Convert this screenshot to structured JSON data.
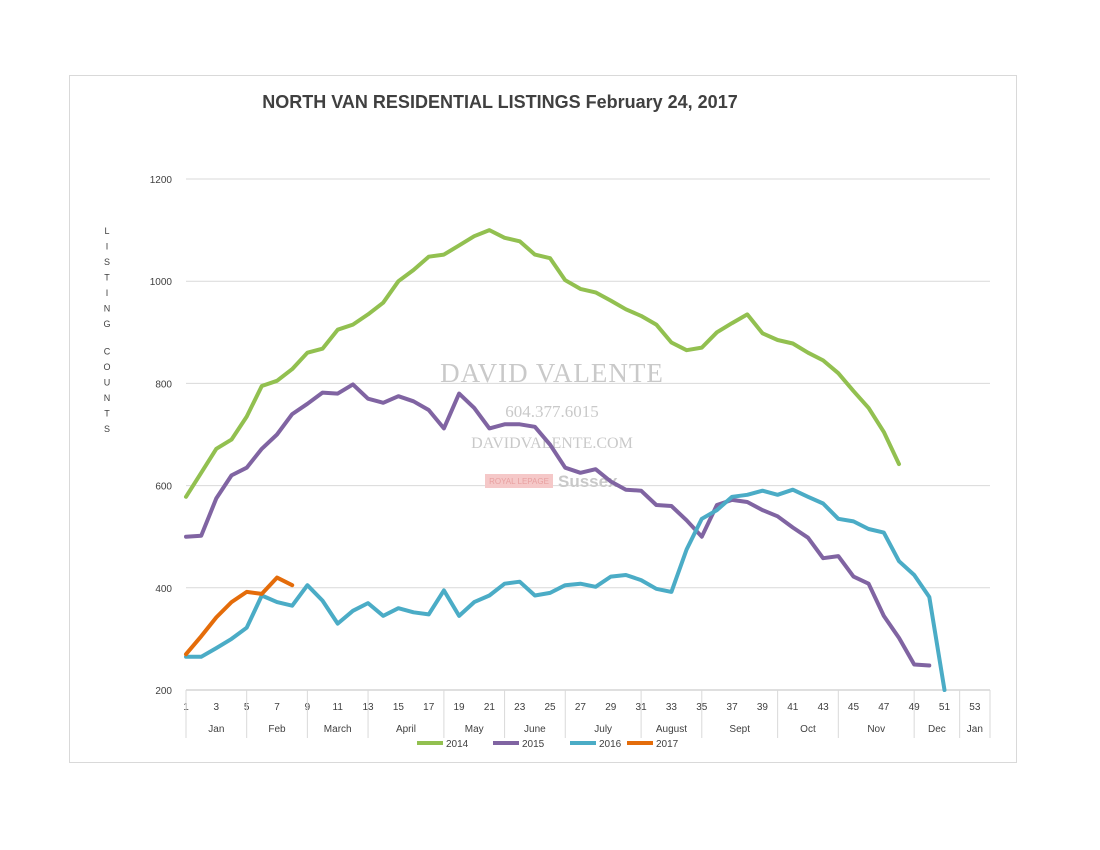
{
  "chart_data": {
    "type": "line",
    "title": "NORTH VAN RESIDENTIAL LISTINGS February 24, 2017",
    "ylabel": "LISTING COUNTS",
    "xlabel": "",
    "ylim": [
      200,
      1200
    ],
    "yticks": [
      200,
      400,
      600,
      800,
      1000,
      1200
    ],
    "xlim": [
      1,
      53
    ],
    "xticks": [
      1,
      3,
      5,
      7,
      9,
      11,
      13,
      15,
      17,
      19,
      21,
      23,
      25,
      27,
      29,
      31,
      33,
      35,
      37,
      39,
      41,
      43,
      45,
      47,
      49,
      51,
      53
    ],
    "months": [
      {
        "label": "Jan",
        "from": 1,
        "to": 5
      },
      {
        "label": "Feb",
        "from": 5,
        "to": 9
      },
      {
        "label": "March",
        "from": 9,
        "to": 13
      },
      {
        "label": "April",
        "from": 13,
        "to": 18
      },
      {
        "label": "May",
        "from": 18,
        "to": 22
      },
      {
        "label": "June",
        "from": 22,
        "to": 26
      },
      {
        "label": "July",
        "from": 26,
        "to": 31
      },
      {
        "label": "August",
        "from": 31,
        "to": 35
      },
      {
        "label": "Sept",
        "from": 35,
        "to": 40
      },
      {
        "label": "Oct",
        "from": 40,
        "to": 44
      },
      {
        "label": "Nov",
        "from": 44,
        "to": 49
      },
      {
        "label": "Dec",
        "from": 49,
        "to": 52
      },
      {
        "label": "Jan",
        "from": 52,
        "to": 54
      }
    ],
    "grid": true,
    "legend": "bottom",
    "series": [
      {
        "name": "2014",
        "color": "#92c050",
        "x": [
          1,
          2,
          3,
          4,
          5,
          6,
          7,
          8,
          9,
          10,
          11,
          12,
          13,
          14,
          15,
          16,
          17,
          18,
          19,
          20,
          21,
          22,
          23,
          24,
          25,
          26,
          27,
          28,
          29,
          30,
          31,
          32,
          33,
          34,
          35,
          36,
          37,
          38,
          39,
          40,
          41,
          42,
          43,
          44,
          45,
          46,
          47,
          48
        ],
        "values": [
          578,
          625,
          672,
          690,
          735,
          795,
          805,
          828,
          860,
          868,
          905,
          915,
          935,
          958,
          1000,
          1022,
          1048,
          1052,
          1070,
          1088,
          1100,
          1085,
          1078,
          1052,
          1045,
          1002,
          985,
          978,
          962,
          945,
          932,
          915,
          880,
          865,
          870,
          900,
          918,
          935,
          898,
          885,
          878,
          860,
          845,
          820,
          785,
          752,
          705,
          642
        ]
      },
      {
        "name": "2015",
        "color": "#8064a2",
        "x": [
          1,
          2,
          3,
          4,
          5,
          6,
          7,
          8,
          9,
          10,
          11,
          12,
          13,
          14,
          15,
          16,
          17,
          18,
          19,
          20,
          21,
          22,
          23,
          24,
          25,
          26,
          27,
          28,
          29,
          30,
          31,
          32,
          33,
          34,
          35,
          36,
          37,
          38,
          39,
          40,
          41,
          42,
          43,
          44,
          45,
          46,
          47,
          48,
          49,
          50
        ],
        "values": [
          500,
          502,
          575,
          620,
          635,
          672,
          700,
          740,
          760,
          782,
          780,
          798,
          770,
          762,
          775,
          765,
          748,
          712,
          780,
          752,
          712,
          720,
          720,
          715,
          680,
          635,
          625,
          632,
          608,
          592,
          590,
          562,
          560,
          532,
          500,
          562,
          572,
          568,
          552,
          540,
          518,
          498,
          458,
          462,
          422,
          408,
          345,
          302,
          250,
          248
        ]
      },
      {
        "name": "2016",
        "color": "#4bacc6",
        "x": [
          1,
          2,
          3,
          4,
          5,
          6,
          7,
          8,
          9,
          10,
          11,
          12,
          13,
          14,
          15,
          16,
          17,
          18,
          19,
          20,
          21,
          22,
          23,
          24,
          25,
          26,
          27,
          28,
          29,
          30,
          31,
          32,
          33,
          34,
          35,
          36,
          37,
          38,
          39,
          40,
          41,
          42,
          43,
          44,
          45,
          46,
          47,
          48,
          49,
          50,
          51
        ],
        "values": [
          265,
          265,
          282,
          300,
          322,
          385,
          372,
          365,
          405,
          375,
          330,
          355,
          370,
          345,
          360,
          352,
          348,
          395,
          345,
          372,
          385,
          408,
          412,
          385,
          390,
          405,
          408,
          402,
          422,
          425,
          415,
          398,
          392,
          475,
          535,
          552,
          578,
          582,
          590,
          582,
          592,
          578,
          565,
          535,
          530,
          515,
          508,
          452,
          425,
          382,
          200
        ]
      },
      {
        "name": "2017",
        "color": "#e46c0a",
        "x": [
          1,
          2,
          3,
          4,
          5,
          6,
          7,
          8
        ],
        "values": [
          270,
          305,
          342,
          372,
          392,
          388,
          420,
          405
        ]
      }
    ]
  },
  "watermark": {
    "name": "DAVID VALENTE",
    "phone": "604.377.6015",
    "site": "DAVIDVALENTE.COM",
    "brand": "ROYAL LEPAGE",
    "office": "Sussex"
  }
}
